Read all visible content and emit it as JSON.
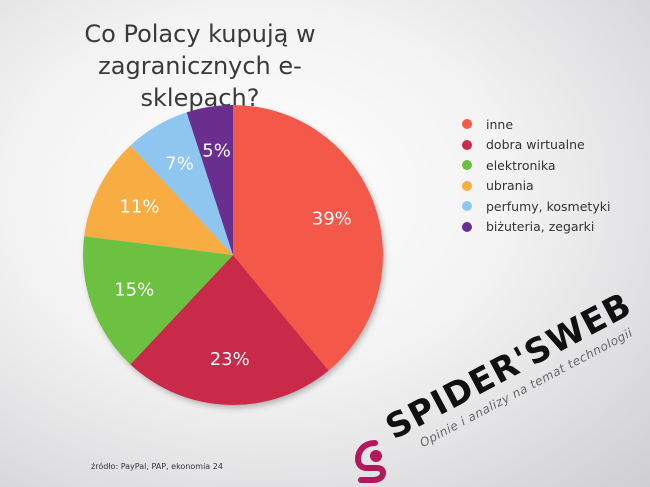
{
  "title_line1": "Co Polacy kupują w",
  "title_line2": "zagranicznych e-sklepach?",
  "source": "źródło: PayPal, PAP, ekonomia 24",
  "watermark": {
    "brand": "SPIDER'SWEB",
    "tagline": "Opinie i analizy na temat technologii"
  },
  "chart_data": {
    "type": "pie",
    "title": "Co Polacy kupują w zagranicznych e-sklepach?",
    "categories": [
      "inne",
      "dobra wirtualne",
      "elektronika",
      "ubrania",
      "perfumy, kosmetyki",
      "biżuteria, zegarki"
    ],
    "values": [
      39,
      23,
      15,
      11,
      7,
      5
    ],
    "labels": [
      "39%",
      "23%",
      "15%",
      "11%",
      "7%",
      "5%"
    ],
    "colors": [
      "#f4594a",
      "#c92b4a",
      "#6cc23f",
      "#f7ad42",
      "#8fc6f0",
      "#6a2f8e"
    ],
    "legend_position": "right"
  }
}
